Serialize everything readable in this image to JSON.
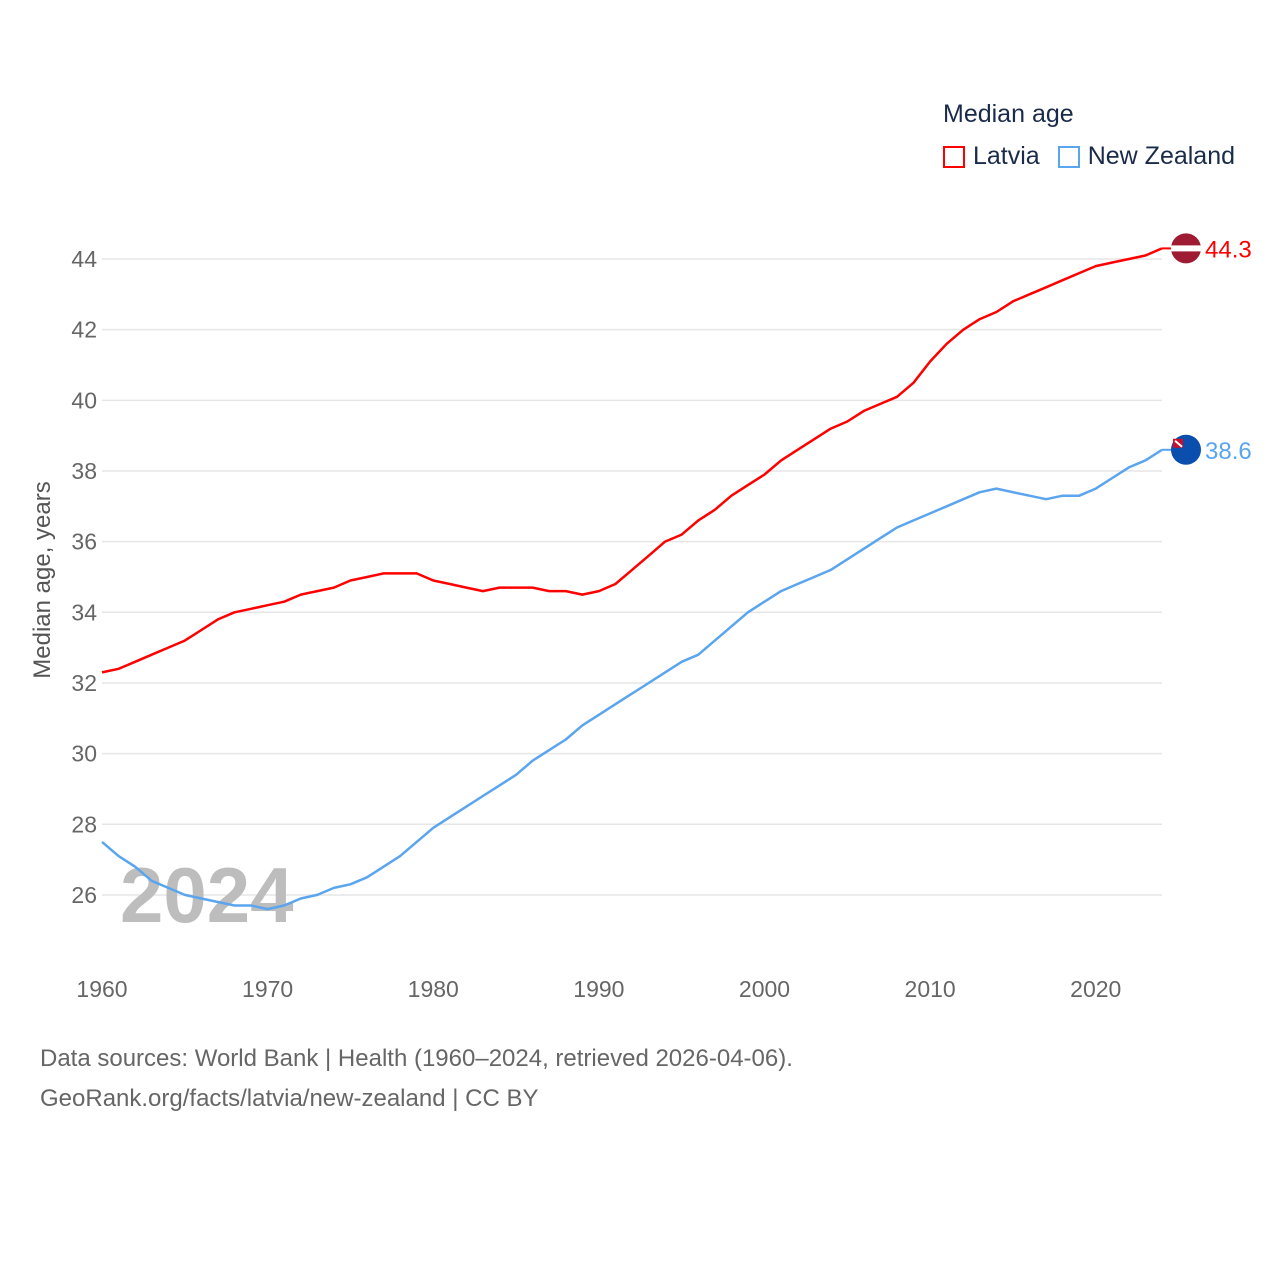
{
  "legend": {
    "title": "Median age",
    "items": [
      {
        "label": "Latvia",
        "color": "#ff0000"
      },
      {
        "label": "New Zealand",
        "color": "#5aa5ee"
      }
    ]
  },
  "footer": {
    "line1": "Data sources: World Bank | Health (1960–2024, retrieved 2026-04-06).",
    "line2": "GeoRank.org/facts/latvia/new-zealand | CC BY"
  },
  "chart_data": {
    "type": "line",
    "title": "Median age",
    "xlabel": "",
    "ylabel": "Median age, years",
    "watermark": "2024",
    "xlim": [
      1960,
      2024
    ],
    "ylim": [
      24.8,
      45
    ],
    "xticks": [
      1960,
      1970,
      1980,
      1990,
      2000,
      2010,
      2020
    ],
    "yticks": [
      26,
      28,
      30,
      32,
      34,
      36,
      38,
      40,
      42,
      44
    ],
    "grid": true,
    "legend_position": "top-right",
    "x_start": 1960,
    "series": [
      {
        "name": "Latvia",
        "color": "#ff0000",
        "end_label": "44.3",
        "flag": "latvia-flag",
        "values": [
          32.3,
          32.4,
          32.6,
          32.8,
          33.0,
          33.2,
          33.5,
          33.8,
          34.0,
          34.1,
          34.2,
          34.3,
          34.5,
          34.6,
          34.7,
          34.9,
          35.0,
          35.1,
          35.1,
          35.1,
          34.9,
          34.8,
          34.7,
          34.6,
          34.7,
          34.7,
          34.7,
          34.6,
          34.6,
          34.5,
          34.6,
          34.8,
          35.2,
          35.6,
          36.0,
          36.2,
          36.6,
          36.9,
          37.3,
          37.6,
          37.9,
          38.3,
          38.6,
          38.9,
          39.2,
          39.4,
          39.7,
          39.9,
          40.1,
          40.5,
          41.1,
          41.6,
          42.0,
          42.3,
          42.5,
          42.8,
          43.0,
          43.2,
          43.4,
          43.6,
          43.8,
          43.9,
          44.0,
          44.1,
          44.3
        ]
      },
      {
        "name": "New Zealand",
        "color": "#5aa5ee",
        "end_label": "38.6",
        "flag": "new-zealand-flag",
        "values": [
          27.5,
          27.1,
          26.8,
          26.4,
          26.2,
          26.0,
          25.9,
          25.8,
          25.7,
          25.7,
          25.6,
          25.7,
          25.9,
          26.0,
          26.2,
          26.3,
          26.5,
          26.8,
          27.1,
          27.5,
          27.9,
          28.2,
          28.5,
          28.8,
          29.1,
          29.4,
          29.8,
          30.1,
          30.4,
          30.8,
          31.1,
          31.4,
          31.7,
          32.0,
          32.3,
          32.6,
          32.8,
          33.2,
          33.6,
          34.0,
          34.3,
          34.6,
          34.8,
          35.0,
          35.2,
          35.5,
          35.8,
          36.1,
          36.4,
          36.6,
          36.8,
          37.0,
          37.2,
          37.4,
          37.5,
          37.4,
          37.3,
          37.2,
          37.3,
          37.3,
          37.5,
          37.8,
          38.1,
          38.3,
          38.6
        ]
      }
    ]
  }
}
